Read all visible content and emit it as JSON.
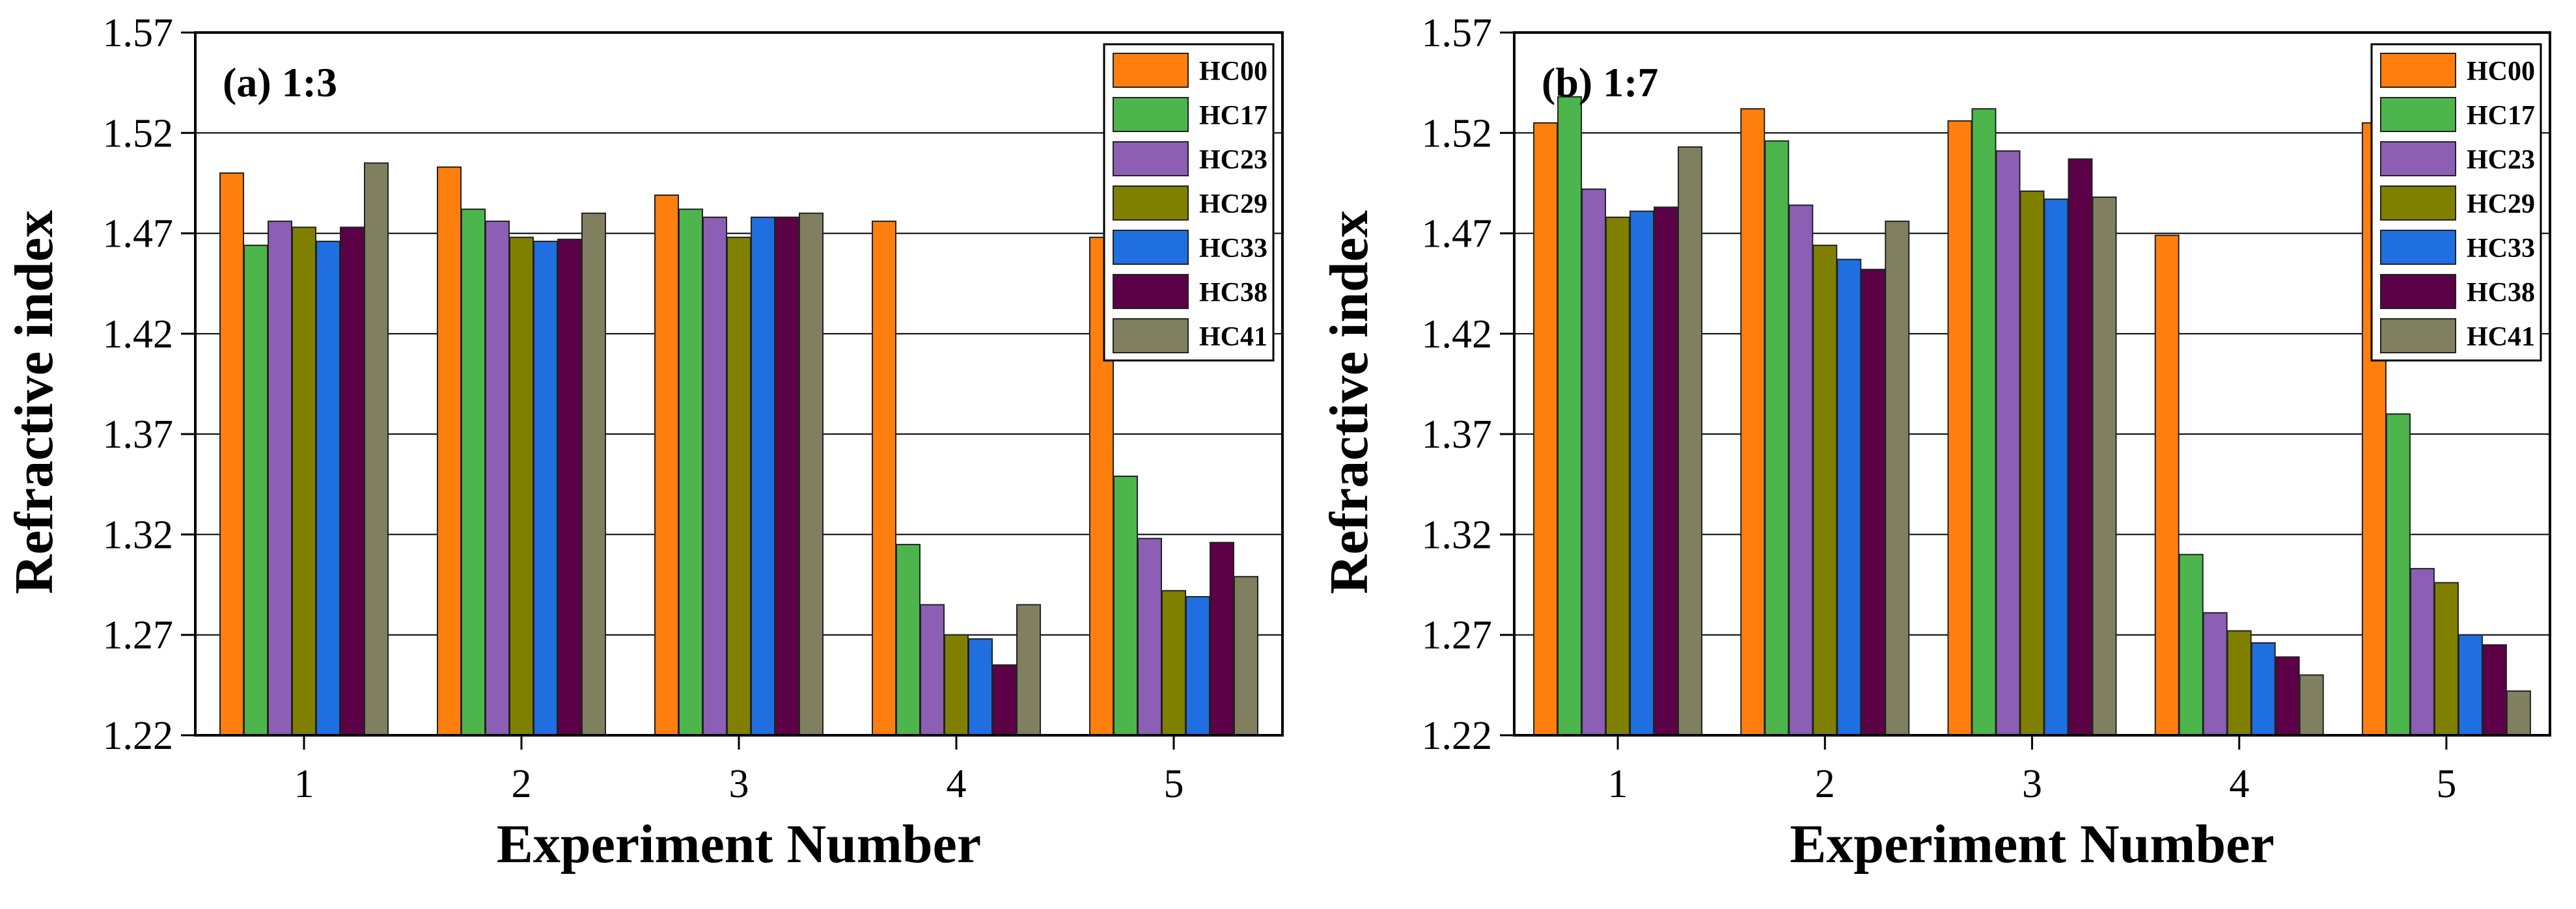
{
  "figure": {
    "series_colors": {
      "HC00": "#ff7f0e",
      "HC17": "#4cb64c",
      "HC23": "#8c5fb4",
      "HC29": "#808000",
      "HC33": "#1f6fe0",
      "HC38": "#5c0047",
      "HC41": "#808060"
    }
  },
  "chart_data": [
    {
      "type": "bar",
      "title": "(a) 1:3",
      "xlabel": "Experiment Number",
      "ylabel": "Refractive index",
      "categories": [
        "1",
        "2",
        "3",
        "4",
        "5"
      ],
      "ylim": [
        1.22,
        1.57
      ],
      "yticks": [
        "1.22",
        "1.27",
        "1.32",
        "1.37",
        "1.42",
        "1.47",
        "1.52",
        "1.57"
      ],
      "grid": true,
      "legend_position": "top-right",
      "series": [
        {
          "name": "HC00",
          "values": [
            1.5,
            1.503,
            1.489,
            1.476,
            1.468
          ]
        },
        {
          "name": "HC17",
          "values": [
            1.464,
            1.482,
            1.482,
            1.315,
            1.349
          ]
        },
        {
          "name": "HC23",
          "values": [
            1.476,
            1.476,
            1.478,
            1.285,
            1.318
          ]
        },
        {
          "name": "HC29",
          "values": [
            1.473,
            1.468,
            1.468,
            1.27,
            1.292
          ]
        },
        {
          "name": "HC33",
          "values": [
            1.466,
            1.466,
            1.478,
            1.268,
            1.289
          ]
        },
        {
          "name": "HC38",
          "values": [
            1.473,
            1.467,
            1.478,
            1.255,
            1.316
          ]
        },
        {
          "name": "HC41",
          "values": [
            1.505,
            1.48,
            1.48,
            1.285,
            1.299
          ]
        }
      ]
    },
    {
      "type": "bar",
      "title": "(b) 1:7",
      "xlabel": "Experiment Number",
      "ylabel": "Refractive index",
      "categories": [
        "1",
        "2",
        "3",
        "4",
        "5"
      ],
      "ylim": [
        1.22,
        1.57
      ],
      "yticks": [
        "1.22",
        "1.27",
        "1.32",
        "1.37",
        "1.42",
        "1.47",
        "1.52",
        "1.57"
      ],
      "grid": true,
      "legend_position": "top-right",
      "series": [
        {
          "name": "HC00",
          "values": [
            1.525,
            1.532,
            1.526,
            1.469,
            1.525
          ]
        },
        {
          "name": "HC17",
          "values": [
            1.538,
            1.516,
            1.532,
            1.31,
            1.38
          ]
        },
        {
          "name": "HC23",
          "values": [
            1.492,
            1.484,
            1.511,
            1.281,
            1.303
          ]
        },
        {
          "name": "HC29",
          "values": [
            1.478,
            1.464,
            1.491,
            1.272,
            1.296
          ]
        },
        {
          "name": "HC33",
          "values": [
            1.481,
            1.457,
            1.487,
            1.266,
            1.27
          ]
        },
        {
          "name": "HC38",
          "values": [
            1.483,
            1.452,
            1.507,
            1.259,
            1.265
          ]
        },
        {
          "name": "HC41",
          "values": [
            1.513,
            1.476,
            1.488,
            1.25,
            1.242
          ]
        }
      ]
    }
  ]
}
